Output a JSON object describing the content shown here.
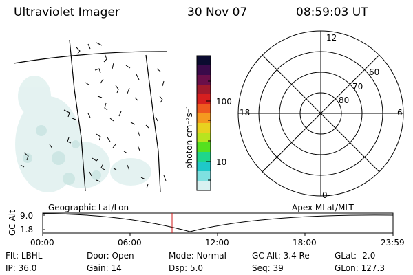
{
  "header": {
    "instrument": "Ultraviolet Imager",
    "date": "30 Nov 07",
    "time": "08:59:03 UT"
  },
  "colorbar": {
    "label": "photon cm⁻²s⁻¹",
    "ticks": [
      "100",
      "10"
    ],
    "colors": [
      "#0b0b30",
      "#3a0a4a",
      "#6a0f4a",
      "#a11a2c",
      "#d61f1f",
      "#ee5a1f",
      "#f59a1f",
      "#e8d21f",
      "#b8e41f",
      "#55e01f",
      "#1fd68a",
      "#1fc8c8",
      "#7fe0e0",
      "#d9f1f1"
    ]
  },
  "polar_plot": {
    "latitude_labels": [
      "80",
      "70",
      "60"
    ],
    "mlt_labels": {
      "top": "12",
      "bottom": "0",
      "left": "18",
      "right": "6"
    }
  },
  "altitude_strip": {
    "left_title": "Geographic Lat/Lon",
    "right_title": "Apex MLat/MLT",
    "ylabel": "GC Alt",
    "yticks": [
      "9.0",
      "1.8"
    ],
    "xticks": [
      "00:00",
      "06:00",
      "12:00",
      "18:00",
      "23:59"
    ],
    "marker_time": "08:59:03",
    "marker_color": "#d11a1a"
  },
  "status": {
    "row1": [
      {
        "label": "Flt:",
        "value": "LBHL"
      },
      {
        "label": "Door:",
        "value": "Open"
      },
      {
        "label": "Mode:",
        "value": "Normal"
      },
      {
        "label": "GC Alt:",
        "value": "3.4 Re"
      },
      {
        "label": "GLat:",
        "value": "-2.0"
      }
    ],
    "row2": [
      {
        "label": "IP:",
        "value": "36.0"
      },
      {
        "label": "Gain:",
        "value": "14"
      },
      {
        "label": "Dsp:",
        "value": "5.0"
      },
      {
        "label": "Seq:",
        "value": "39"
      },
      {
        "label": "GLon:",
        "value": "127.3"
      }
    ]
  }
}
